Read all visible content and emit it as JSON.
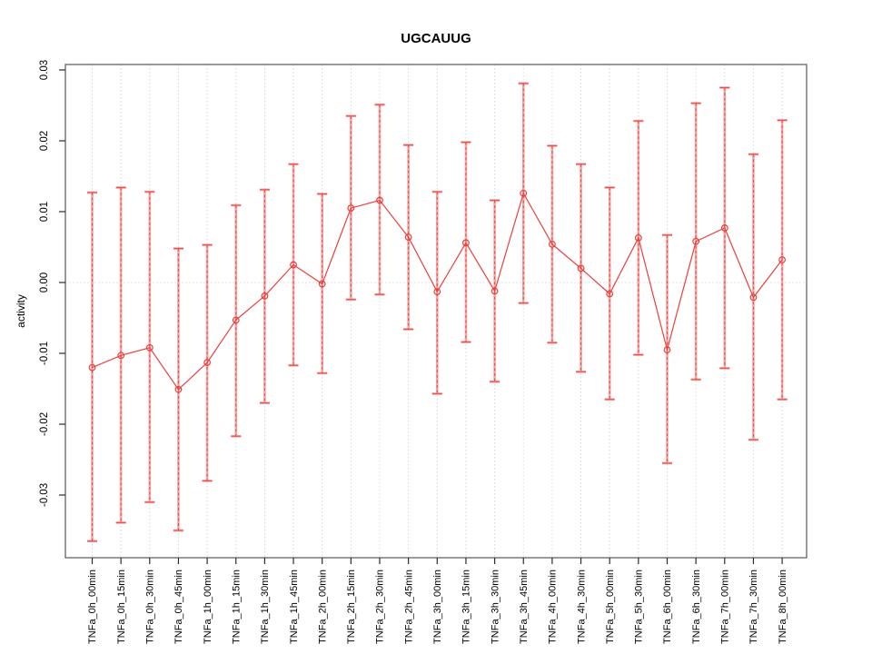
{
  "chart_data": {
    "type": "line",
    "subtype": "points-with-error-bars",
    "title": "UGCAUUG",
    "xlabel": "",
    "ylabel": "activity",
    "grid": "vertical-dotted-per-category-plus-zero-line",
    "legend": "none",
    "ylim": [
      -0.0375,
      0.031
    ],
    "yticks": [
      {
        "value": 0.03,
        "label": "0.03"
      },
      {
        "value": 0.02,
        "label": "0.02"
      },
      {
        "value": 0.01,
        "label": "0.01"
      },
      {
        "value": 0.0,
        "label": "0.00"
      },
      {
        "value": -0.01,
        "label": "-0.01"
      },
      {
        "value": -0.02,
        "label": "-0.02"
      },
      {
        "value": -0.03,
        "label": "-0.03"
      }
    ],
    "categories": [
      "TNFa_0h_00min",
      "TNFa_0h_15min",
      "TNFa_0h_30min",
      "TNFa_0h_45min",
      "TNFa_1h_00min",
      "TNFa_1h_15min",
      "TNFa_1h_30min",
      "TNFa_1h_45min",
      "TNFa_2h_00min",
      "TNFa_2h_15min",
      "TNFa_2h_30min",
      "TNFa_2h_45min",
      "TNFa_3h_00min",
      "TNFa_3h_15min",
      "TNFa_3h_30min",
      "TNFa_3h_45min",
      "TNFa_4h_00min",
      "TNFa_4h_30min",
      "TNFa_5h_00min",
      "TNFa_5h_30min",
      "TNFa_6h_00min",
      "TNFa_6h_30min",
      "TNFa_7h_00min",
      "TNFa_7h_30min",
      "TNFa_8h_00min"
    ],
    "values": [
      -0.012,
      -0.0103,
      -0.0092,
      -0.0151,
      -0.0113,
      -0.0053,
      -0.0019,
      0.0025,
      -0.0002,
      0.0105,
      0.0116,
      0.0064,
      -0.0013,
      0.0056,
      -0.0012,
      0.0126,
      0.0054,
      0.002,
      -0.0016,
      0.0063,
      -0.0095,
      0.0058,
      0.0077,
      -0.0021,
      0.0032
    ],
    "error_high": [
      0.0127,
      0.0134,
      0.0128,
      0.0048,
      0.0053,
      0.0109,
      0.0131,
      0.0167,
      0.0125,
      0.0235,
      0.0251,
      0.0194,
      0.0128,
      0.0198,
      0.0116,
      0.0281,
      0.0193,
      0.0167,
      0.0134,
      0.0228,
      0.0067,
      0.0253,
      0.0275,
      0.0181,
      0.0229
    ],
    "error_low": [
      -0.0365,
      -0.0339,
      -0.031,
      -0.035,
      -0.028,
      -0.0217,
      -0.017,
      -0.0117,
      -0.0128,
      -0.0024,
      -0.0017,
      -0.0066,
      -0.0157,
      -0.0084,
      -0.014,
      -0.0029,
      -0.0085,
      -0.0126,
      -0.0165,
      -0.0102,
      -0.0255,
      -0.0137,
      -0.0121,
      -0.0222,
      -0.0165
    ],
    "colors": {
      "series_red": "#e9403c",
      "error_bar_pink": "#f6a5a3",
      "grid_gray": "#d9d9d9",
      "frame_gray": "#6e6e6e",
      "tick_black": "#2b2b2b",
      "background": "#ffffff"
    }
  }
}
